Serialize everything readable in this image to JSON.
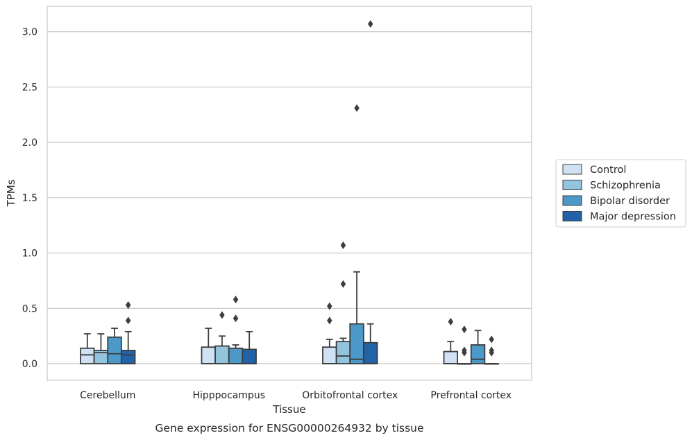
{
  "chart_data": {
    "type": "box",
    "title": "",
    "caption": "Gene expression for ENSG00000264932 by tissue",
    "xlabel": "Tissue",
    "ylabel": "TPMs",
    "ylim": [
      -0.15,
      3.23
    ],
    "yticks": [
      0.0,
      0.5,
      1.0,
      1.5,
      2.0,
      2.5,
      3.0
    ],
    "ytick_labels": [
      "0.0",
      "0.5",
      "1.0",
      "1.5",
      "2.0",
      "2.5",
      "3.0"
    ],
    "grid": "horizontal",
    "legend_placement": "right",
    "categories": [
      "Cerebellum",
      "Hipppocampus",
      "Orbitofrontal cortex",
      "Prefrontal cortex"
    ],
    "series": [
      {
        "name": "Control",
        "color": "#cfe1f2",
        "boxes": [
          {
            "q1": 0.0,
            "median": 0.08,
            "q3": 0.14,
            "whisker_low": 0.0,
            "whisker_high": 0.27,
            "outliers": []
          },
          {
            "q1": 0.0,
            "median": 0.0,
            "q3": 0.15,
            "whisker_low": 0.0,
            "whisker_high": 0.32,
            "outliers": []
          },
          {
            "q1": 0.0,
            "median": 0.0,
            "q3": 0.15,
            "whisker_low": 0.0,
            "whisker_high": 0.22,
            "outliers": [
              0.52,
              0.39
            ]
          },
          {
            "q1": 0.0,
            "median": 0.0,
            "q3": 0.11,
            "whisker_low": 0.0,
            "whisker_high": 0.2,
            "outliers": [
              0.38
            ]
          }
        ]
      },
      {
        "name": "Schizophrenia",
        "color": "#93c4de",
        "boxes": [
          {
            "q1": 0.0,
            "median": 0.1,
            "q3": 0.12,
            "whisker_low": 0.0,
            "whisker_high": 0.27,
            "outliers": []
          },
          {
            "q1": 0.0,
            "median": 0.0,
            "q3": 0.16,
            "whisker_low": 0.0,
            "whisker_high": 0.25,
            "outliers": [
              0.44
            ]
          },
          {
            "q1": 0.0,
            "median": 0.07,
            "q3": 0.2,
            "whisker_low": 0.0,
            "whisker_high": 0.23,
            "outliers": [
              1.07,
              0.72
            ]
          },
          {
            "q1": 0.0,
            "median": 0.0,
            "q3": 0.0,
            "whisker_low": 0.0,
            "whisker_high": 0.0,
            "outliers": [
              0.31,
              0.12,
              0.1
            ]
          }
        ]
      },
      {
        "name": "Bipolar disorder",
        "color": "#4b98c9",
        "boxes": [
          {
            "q1": 0.0,
            "median": 0.09,
            "q3": 0.24,
            "whisker_low": 0.0,
            "whisker_high": 0.32,
            "outliers": []
          },
          {
            "q1": 0.0,
            "median": 0.0,
            "q3": 0.14,
            "whisker_low": 0.0,
            "whisker_high": 0.17,
            "outliers": [
              0.58,
              0.41
            ]
          },
          {
            "q1": 0.0,
            "median": 0.04,
            "q3": 0.36,
            "whisker_low": 0.0,
            "whisker_high": 0.83,
            "outliers": [
              2.31
            ]
          },
          {
            "q1": 0.0,
            "median": 0.04,
            "q3": 0.17,
            "whisker_low": 0.0,
            "whisker_high": 0.3,
            "outliers": []
          }
        ]
      },
      {
        "name": "Major depression",
        "color": "#2163a6",
        "boxes": [
          {
            "q1": 0.0,
            "median": 0.08,
            "q3": 0.12,
            "whisker_low": 0.0,
            "whisker_high": 0.29,
            "outliers": [
              0.53,
              0.39
            ]
          },
          {
            "q1": 0.0,
            "median": 0.0,
            "q3": 0.13,
            "whisker_low": 0.0,
            "whisker_high": 0.29,
            "outliers": []
          },
          {
            "q1": 0.0,
            "median": 0.0,
            "q3": 0.19,
            "whisker_low": 0.0,
            "whisker_high": 0.36,
            "outliers": [
              3.07
            ]
          },
          {
            "q1": 0.0,
            "median": 0.0,
            "q3": 0.0,
            "whisker_low": 0.0,
            "whisker_high": 0.0,
            "outliers": [
              0.22,
              0.12,
              0.1
            ]
          }
        ]
      }
    ]
  }
}
